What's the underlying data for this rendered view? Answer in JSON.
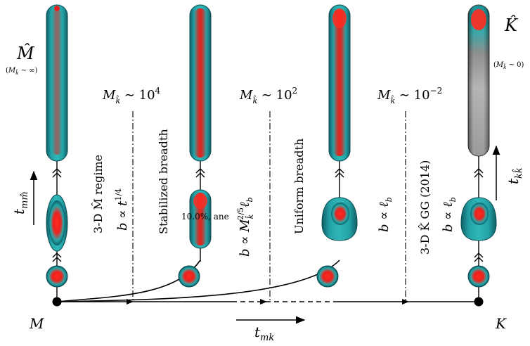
{
  "endpoints": {
    "left": "M",
    "right": "K"
  },
  "axes": {
    "t_mk": {
      "base": "t",
      "sub": "mk"
    },
    "t_mm": {
      "base": "t",
      "sub": "mm̂"
    },
    "t_kk": {
      "base": "t",
      "sub": "kk̂"
    }
  },
  "corners": {
    "m_hat": {
      "label": "M̂",
      "cond_pre": "(",
      "cond_m": "M",
      "cond_sub": "k̂",
      "cond_post": " ∼ ∞)"
    },
    "k_hat": {
      "label": "K̂",
      "cond_pre": "(",
      "cond_m": "M",
      "cond_sub": "k̂",
      "cond_post": " ∼ 0)"
    }
  },
  "thresholds": [
    {
      "m": "M",
      "sub": "k̂",
      "rel": " ∼ 10",
      "exp": "4"
    },
    {
      "m": "M",
      "sub": "k̂",
      "rel": " ∼ 10",
      "exp": "2"
    },
    {
      "m": "M",
      "sub": "k̂",
      "rel": " ∼ 10",
      "exp": "−2"
    }
  ],
  "regimes": [
    {
      "label": "3-D M̂  regime",
      "law": {
        "b": "b ∝ t",
        "exp": "1/4"
      }
    },
    {
      "label": "Stabilized breadth",
      "law": {
        "b": "b ∝ M",
        "sub": "k̂",
        "exp": "2/5",
        "tail": "ℓ",
        "tail_sub": "b"
      },
      "overlap": "10.0%, ane"
    },
    {
      "label": "Uniform breadth",
      "law": {
        "b": "b ∝ ℓ",
        "sub": "b"
      }
    },
    {
      "label": "3-D K̂  GG (2014)",
      "law": {
        "b": "b ∝ ℓ",
        "sub": "b"
      }
    }
  ],
  "colors": {
    "teal": "#1a8f94",
    "red": "#e8231f",
    "grey": "#9a9a9a"
  }
}
